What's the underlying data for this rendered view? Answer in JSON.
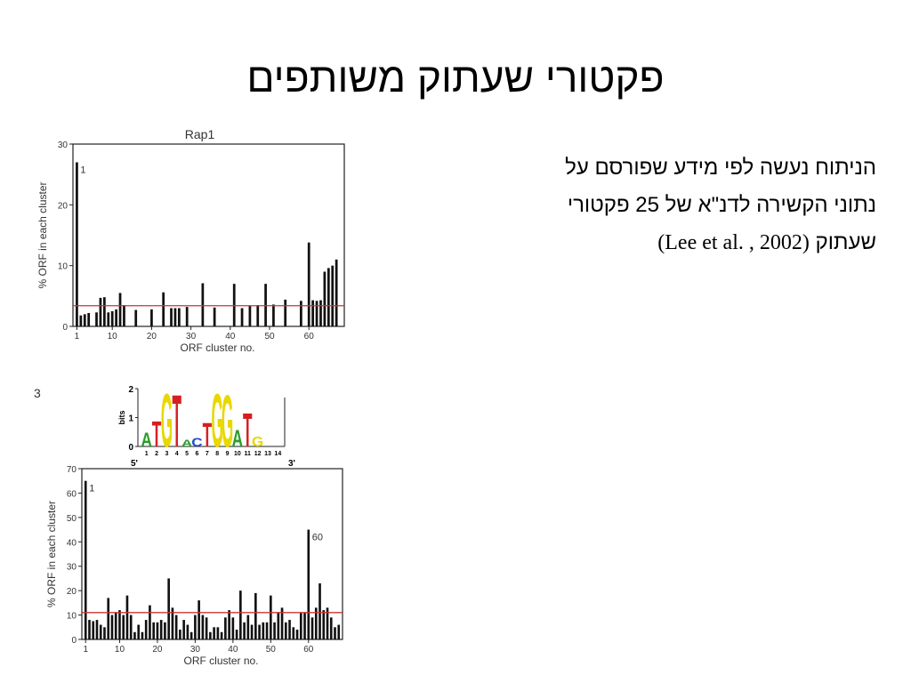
{
  "slide": {
    "title": "פקטורי שעתוק משותפים",
    "body_line1": "הניתוח נעשה לפי מידע שפורסם על",
    "body_line2": "נתוני הקשירה לדנ\"א של 25 פקטורי",
    "body_line3_text": "שעתוק",
    "body_line3_cite": "(Lee et al. , 2002)"
  },
  "chart_data": [
    {
      "type": "bar",
      "title": "Rap1",
      "xlabel": "ORF cluster no.",
      "ylabel": "% ORF in each cluster",
      "x": [
        1,
        2,
        3,
        4,
        6,
        7,
        8,
        9,
        10,
        11,
        12,
        13,
        16,
        20,
        23,
        25,
        26,
        27,
        29,
        33,
        36,
        41,
        43,
        45,
        47,
        49,
        51,
        54,
        58,
        60,
        61,
        62,
        63,
        64,
        65,
        66,
        67
      ],
      "values": [
        27,
        1.8,
        2,
        2.2,
        2.3,
        4.7,
        4.8,
        2.3,
        2.5,
        2.8,
        5.5,
        3.5,
        2.7,
        2.8,
        5.6,
        3,
        3,
        3,
        3.2,
        7.1,
        3.1,
        7,
        3,
        3.4,
        3.5,
        7,
        3.6,
        4.4,
        4.2,
        13.8,
        4.3,
        4.2,
        4.3,
        9,
        9.6,
        10,
        11
      ],
      "xticks": [
        "1",
        "10",
        "20",
        "30",
        "40",
        "50",
        "60"
      ],
      "yticks": [
        "0",
        "10",
        "20",
        "30"
      ],
      "xlim": [
        0,
        69
      ],
      "ylim": [
        0,
        30
      ],
      "reference_line": 3.4,
      "reference_color": "#cc3333",
      "bar_color": "#111111",
      "annotations": [
        {
          "text": "1",
          "x": 1
        }
      ]
    },
    {
      "type": "bar",
      "panel_label": "3",
      "xlabel": "ORF cluster no.",
      "ylabel": "% ORF in each cluster",
      "x": [
        1,
        2,
        3,
        4,
        5,
        6,
        7,
        8,
        9,
        10,
        11,
        12,
        13,
        14,
        15,
        16,
        17,
        18,
        19,
        20,
        21,
        22,
        23,
        24,
        25,
        26,
        27,
        28,
        29,
        30,
        31,
        32,
        33,
        34,
        35,
        36,
        37,
        38,
        39,
        40,
        41,
        42,
        43,
        44,
        45,
        46,
        47,
        48,
        49,
        50,
        51,
        52,
        53,
        54,
        55,
        56,
        57,
        58,
        59,
        60,
        61,
        62,
        63,
        64,
        65,
        66,
        67,
        68
      ],
      "values": [
        65,
        8,
        7.5,
        8,
        6,
        5,
        17,
        10,
        11,
        12,
        10,
        18,
        10,
        3,
        6,
        3,
        8,
        14,
        7,
        7,
        8,
        7,
        25,
        13,
        10,
        4,
        8,
        6,
        3,
        10,
        16,
        10,
        9,
        3,
        5,
        5,
        3,
        9,
        12,
        9,
        4,
        20,
        7,
        10,
        6,
        19,
        6,
        7,
        7,
        18,
        7,
        11,
        13,
        7,
        8,
        5,
        4,
        11,
        11,
        45,
        9,
        13,
        23,
        12,
        13,
        9,
        5,
        6
      ],
      "xticks": [
        "1",
        "10",
        "20",
        "30",
        "40",
        "50",
        "60"
      ],
      "yticks": [
        "0",
        "10",
        "20",
        "30",
        "40",
        "50",
        "60",
        "70"
      ],
      "xlim": [
        0,
        69
      ],
      "ylim": [
        0,
        70
      ],
      "reference_line": 11,
      "reference_color": "#cc3333",
      "bar_color": "#111111",
      "annotations": [
        {
          "text": "1",
          "x": 1
        },
        {
          "text": "60",
          "x": 60
        }
      ]
    }
  ],
  "sequence_logo": {
    "ylabel": "bits",
    "yticks": [
      "0",
      "1",
      "2"
    ],
    "end5": "5'",
    "end3": "3'",
    "positions": [
      "1",
      "2",
      "3",
      "4",
      "5",
      "6",
      "7",
      "8",
      "9",
      "10",
      "11",
      "12",
      "13",
      "14"
    ],
    "letters": [
      {
        "pos": 1,
        "char": "A",
        "bits": 0.5,
        "color": "#2a9d2a"
      },
      {
        "pos": 2,
        "char": "T",
        "bits": 0.9,
        "color": "#d62020"
      },
      {
        "pos": 3,
        "char": "G",
        "bits": 1.9,
        "color": "#e8d800"
      },
      {
        "pos": 4,
        "char": "T",
        "bits": 1.85,
        "color": "#d62020"
      },
      {
        "pos": 5,
        "char": "A",
        "bits": 0.25,
        "color": "#2a9d2a"
      },
      {
        "pos": 6,
        "char": "C",
        "bits": 0.3,
        "color": "#1f4fc9"
      },
      {
        "pos": 7,
        "char": "T",
        "bits": 0.85,
        "color": "#d62020"
      },
      {
        "pos": 8,
        "char": "G",
        "bits": 1.9,
        "color": "#e8d800"
      },
      {
        "pos": 9,
        "char": "G",
        "bits": 1.85,
        "color": "#e8d800"
      },
      {
        "pos": 10,
        "char": "A",
        "bits": 0.6,
        "color": "#2a9d2a"
      },
      {
        "pos": 11,
        "char": "T",
        "bits": 1.2,
        "color": "#d62020"
      },
      {
        "pos": 12,
        "char": "G",
        "bits": 0.35,
        "color": "#e8d800"
      }
    ],
    "color_A": "#2a9d2a",
    "color_C": "#1f4fc9",
    "color_G": "#e8d800",
    "color_T": "#d62020"
  }
}
